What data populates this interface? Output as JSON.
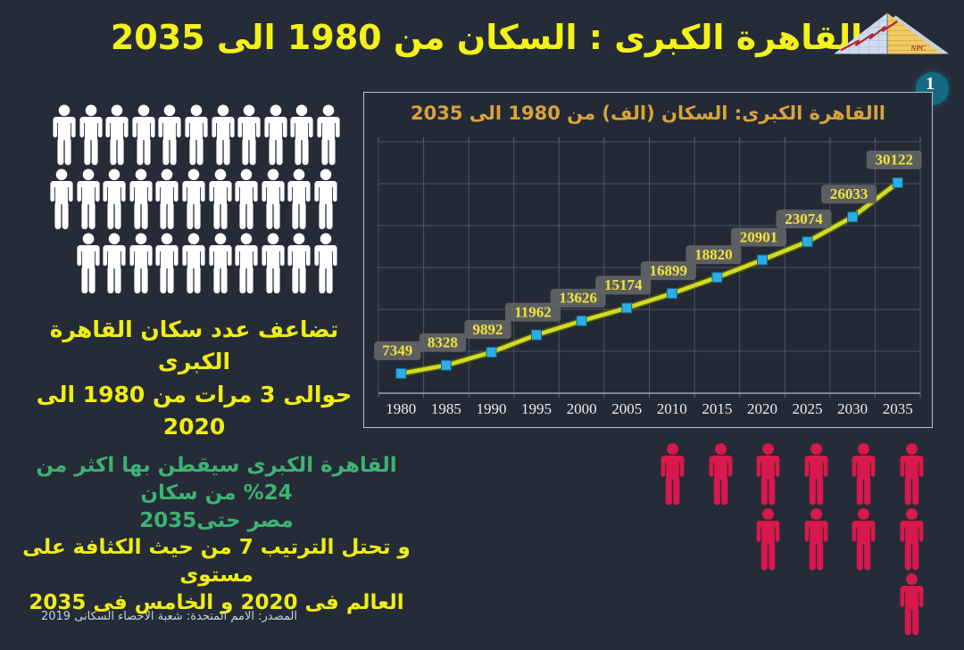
{
  "slide": {
    "title": "القاهرة الكبرى : السكان من 1980 الى 2035",
    "page_number": "1",
    "source": "المصدر: الامم المتحدة: شعبة الاحصاء السكانى 2019",
    "colors": {
      "background": "#262C37",
      "title_yellow": "#F3F11A",
      "note_green": "#3DB273",
      "note_yellow": "#EFED17",
      "figure_white": "#FFFFFF",
      "figure_red": "#D8194D",
      "page_circle_teal": "#156A82"
    }
  },
  "logo": {
    "name": "npc-pyramid-logo",
    "label": "NPC"
  },
  "left_note": {
    "line1": "تضاعف عدد سكان القاهرة الكبرى",
    "line2": "حوالى 3 مرات من 1980 الى 2020"
  },
  "bottom_note": {
    "green_line1": "القاهرة الكبرى سيقطن بها اكثر من 24% من سكان",
    "green_line2": "مصر حتى2035",
    "yellow_line1": "و تحتل الترتيب 7 من حيث الكثافة على مستوى",
    "yellow_line2": "العالم فى 2020 و الخامس فى 2035"
  },
  "pictograms": {
    "white_group": {
      "icon": "person-icon",
      "color": "#FFFFFF",
      "rows": [
        {
          "count": 11,
          "indent": 0
        },
        {
          "count": 11,
          "indent": -0.1
        },
        {
          "count": 10,
          "indent": 0.9
        }
      ]
    },
    "red_group": {
      "icon": "person-icon",
      "color": "#D8194D",
      "rows": [
        {
          "count": 6,
          "indent": 0
        },
        {
          "count": 4,
          "indent": 2
        },
        {
          "count": 1,
          "indent": 5
        }
      ]
    }
  },
  "chart_data": {
    "type": "line",
    "title": "االقاهرة الكبرى: السكان (الف) من 1980 الى 2035",
    "categories": [
      "1980",
      "1985",
      "1990",
      "1995",
      "2000",
      "2005",
      "2010",
      "2015",
      "2020",
      "2025",
      "2030",
      "2035"
    ],
    "values": [
      7349,
      8328,
      9892,
      11962,
      13626,
      15174,
      16899,
      18820,
      20901,
      23074,
      26033,
      30122
    ],
    "ylim": [
      5000,
      35000
    ],
    "y_step": 5000,
    "grid": true,
    "legend": "none",
    "data_labels": true,
    "colors": {
      "line": "#D2DC22",
      "line_edge": "#5A630E",
      "marker": "#2AAEE6",
      "marker_edge": "#17698F",
      "label_bg": "#5F6264",
      "label_text": "#F1E23A",
      "grid": "#4A5464",
      "axis": "#9AA5B0",
      "tick": "#5C6675",
      "tick_label": "#E9EDF0",
      "title": "#D7A33B",
      "plot_border": "#B8C2CC"
    }
  }
}
